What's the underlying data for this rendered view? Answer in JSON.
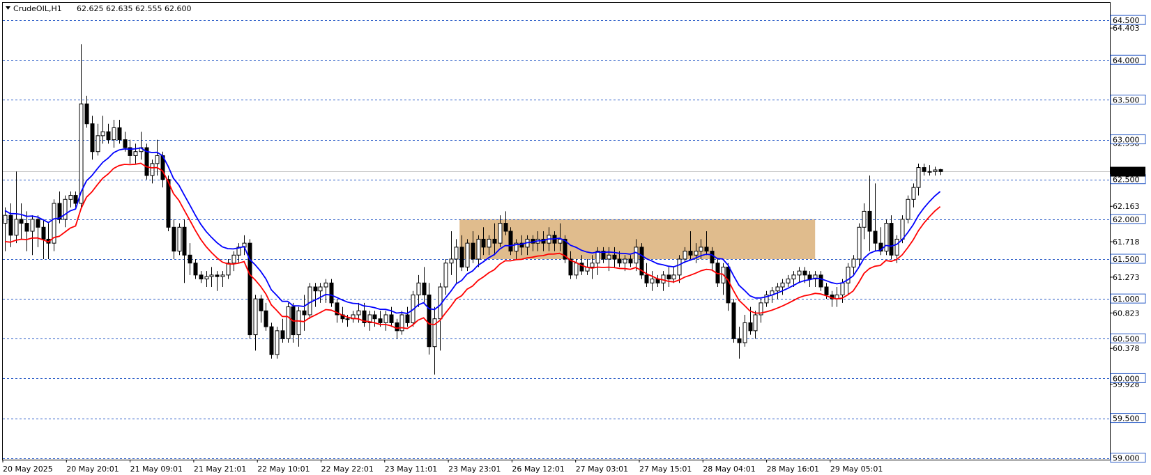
{
  "header": {
    "symbol_timeframe": "CrudeOIL,H1",
    "ohlc": "62.625 62.635 62.555 62.600",
    "menu_icon": "triangle-down-icon"
  },
  "price_axis": {
    "tick_labels": [
      "64.403",
      "62.958",
      "62.163",
      "61.718",
      "61.273",
      "60.823",
      "60.378",
      "59.928",
      "59.483"
    ],
    "tick_values": [
      64.403,
      62.958,
      62.163,
      61.718,
      61.273,
      60.823,
      60.378,
      59.928,
      59.483
    ]
  },
  "level_lines": {
    "values": [
      64.5,
      64.0,
      63.5,
      63.0,
      62.5,
      62.0,
      61.5,
      61.0,
      60.5,
      60.0,
      59.5,
      59.0
    ],
    "labels": [
      "64.500",
      "64.000",
      "63.500",
      "63.000",
      "62.500",
      "62.000",
      "61.500",
      "61.000",
      "60.500",
      "60.000",
      "59.500",
      "59.000"
    ],
    "color": "#2a5cc7"
  },
  "current_price": {
    "value": 62.6,
    "label": "62.600",
    "label_bg": "#000000",
    "label_fg": "#ffffff",
    "line_color": "#c0c0c0"
  },
  "time_axis": {
    "labels": [
      "20 May 2025",
      "20 May 20:01",
      "21 May 09:01",
      "21 May 21:01",
      "22 May 10:01",
      "22 May 22:01",
      "23 May 11:01",
      "23 May 23:01",
      "26 May 12:01",
      "27 May 03:01",
      "27 May 15:01",
      "28 May 04:01",
      "28 May 16:01",
      "29 May 05:01"
    ]
  },
  "zone": {
    "label": "",
    "price_low": 61.5,
    "price_high": 62.0,
    "bar_start": 84,
    "bar_end": 149,
    "color": "#deb887"
  },
  "chart_data": {
    "type": "candlestick",
    "symbol": "CrudeOIL",
    "timeframe": "H1",
    "ylim": [
      58.98,
      64.72
    ],
    "candles": [
      {
        "o": 61.95,
        "h": 62.15,
        "l": 61.6,
        "c": 62.05
      },
      {
        "o": 62.05,
        "h": 62.2,
        "l": 61.65,
        "c": 61.8
      },
      {
        "o": 61.8,
        "h": 62.6,
        "l": 61.7,
        "c": 62.0
      },
      {
        "o": 62.0,
        "h": 62.2,
        "l": 61.75,
        "c": 61.95
      },
      {
        "o": 61.95,
        "h": 62.1,
        "l": 61.6,
        "c": 61.85
      },
      {
        "o": 61.85,
        "h": 62.05,
        "l": 61.55,
        "c": 62.0
      },
      {
        "o": 62.0,
        "h": 62.05,
        "l": 61.65,
        "c": 61.9
      },
      {
        "o": 61.9,
        "h": 62.0,
        "l": 61.5,
        "c": 61.75
      },
      {
        "o": 61.75,
        "h": 61.95,
        "l": 61.5,
        "c": 61.7
      },
      {
        "o": 61.7,
        "h": 62.25,
        "l": 61.6,
        "c": 62.2
      },
      {
        "o": 62.2,
        "h": 62.35,
        "l": 61.95,
        "c": 62.0
      },
      {
        "o": 62.0,
        "h": 62.3,
        "l": 61.9,
        "c": 62.25
      },
      {
        "o": 62.25,
        "h": 62.35,
        "l": 62.15,
        "c": 62.3
      },
      {
        "o": 62.3,
        "h": 62.35,
        "l": 62.15,
        "c": 62.2
      },
      {
        "o": 62.2,
        "h": 64.2,
        "l": 62.15,
        "c": 63.45
      },
      {
        "o": 63.45,
        "h": 63.55,
        "l": 63.15,
        "c": 63.2
      },
      {
        "o": 63.2,
        "h": 63.3,
        "l": 62.75,
        "c": 62.85
      },
      {
        "o": 62.85,
        "h": 63.2,
        "l": 62.8,
        "c": 63.05
      },
      {
        "o": 63.05,
        "h": 63.3,
        "l": 62.95,
        "c": 63.1
      },
      {
        "o": 63.1,
        "h": 63.2,
        "l": 62.95,
        "c": 63.0
      },
      {
        "o": 63.0,
        "h": 63.25,
        "l": 62.9,
        "c": 63.15
      },
      {
        "o": 63.15,
        "h": 63.25,
        "l": 62.95,
        "c": 63.0
      },
      {
        "o": 63.0,
        "h": 63.1,
        "l": 62.85,
        "c": 62.9
      },
      {
        "o": 62.9,
        "h": 63.0,
        "l": 62.7,
        "c": 62.8
      },
      {
        "o": 62.8,
        "h": 62.95,
        "l": 62.7,
        "c": 62.85
      },
      {
        "o": 62.85,
        "h": 63.1,
        "l": 62.75,
        "c": 62.9
      },
      {
        "o": 62.9,
        "h": 62.95,
        "l": 62.5,
        "c": 62.55
      },
      {
        "o": 62.55,
        "h": 62.75,
        "l": 62.45,
        "c": 62.7
      },
      {
        "o": 62.7,
        "h": 63.0,
        "l": 62.55,
        "c": 62.8
      },
      {
        "o": 62.8,
        "h": 62.85,
        "l": 62.4,
        "c": 62.5
      },
      {
        "o": 62.5,
        "h": 62.55,
        "l": 61.85,
        "c": 61.9
      },
      {
        "o": 61.9,
        "h": 62.0,
        "l": 61.5,
        "c": 61.6
      },
      {
        "o": 61.6,
        "h": 61.95,
        "l": 61.55,
        "c": 61.9
      },
      {
        "o": 61.9,
        "h": 62.0,
        "l": 61.2,
        "c": 61.55
      },
      {
        "o": 61.55,
        "h": 61.7,
        "l": 61.3,
        "c": 61.45
      },
      {
        "o": 61.45,
        "h": 61.5,
        "l": 61.25,
        "c": 61.3
      },
      {
        "o": 61.3,
        "h": 61.35,
        "l": 61.2,
        "c": 61.25
      },
      {
        "o": 61.25,
        "h": 61.35,
        "l": 61.15,
        "c": 61.28
      },
      {
        "o": 61.28,
        "h": 61.4,
        "l": 61.15,
        "c": 61.3
      },
      {
        "o": 61.3,
        "h": 61.35,
        "l": 61.1,
        "c": 61.28
      },
      {
        "o": 61.28,
        "h": 61.35,
        "l": 61.15,
        "c": 61.3
      },
      {
        "o": 61.3,
        "h": 61.5,
        "l": 61.25,
        "c": 61.45
      },
      {
        "o": 61.45,
        "h": 61.6,
        "l": 61.35,
        "c": 61.55
      },
      {
        "o": 61.55,
        "h": 61.7,
        "l": 61.45,
        "c": 61.65
      },
      {
        "o": 61.65,
        "h": 61.8,
        "l": 61.55,
        "c": 61.7
      },
      {
        "o": 61.7,
        "h": 61.75,
        "l": 60.5,
        "c": 60.55
      },
      {
        "o": 60.55,
        "h": 61.05,
        "l": 60.35,
        "c": 61.0
      },
      {
        "o": 61.0,
        "h": 61.05,
        "l": 60.7,
        "c": 60.85
      },
      {
        "o": 60.85,
        "h": 60.95,
        "l": 60.6,
        "c": 60.65
      },
      {
        "o": 60.65,
        "h": 60.7,
        "l": 60.25,
        "c": 60.3
      },
      {
        "o": 60.3,
        "h": 60.65,
        "l": 60.25,
        "c": 60.6
      },
      {
        "o": 60.6,
        "h": 60.75,
        "l": 60.45,
        "c": 60.5
      },
      {
        "o": 60.5,
        "h": 60.95,
        "l": 60.45,
        "c": 60.9
      },
      {
        "o": 60.9,
        "h": 60.95,
        "l": 60.45,
        "c": 60.55
      },
      {
        "o": 60.55,
        "h": 60.9,
        "l": 60.4,
        "c": 60.85
      },
      {
        "o": 60.85,
        "h": 61.05,
        "l": 60.6,
        "c": 60.8
      },
      {
        "o": 60.8,
        "h": 61.2,
        "l": 60.75,
        "c": 61.15
      },
      {
        "o": 61.15,
        "h": 61.2,
        "l": 60.9,
        "c": 61.1
      },
      {
        "o": 61.1,
        "h": 61.2,
        "l": 60.95,
        "c": 61.15
      },
      {
        "o": 61.15,
        "h": 61.25,
        "l": 60.95,
        "c": 61.2
      },
      {
        "o": 61.2,
        "h": 61.25,
        "l": 60.9,
        "c": 60.95
      },
      {
        "o": 60.95,
        "h": 61.0,
        "l": 60.7,
        "c": 60.8
      },
      {
        "o": 60.8,
        "h": 60.9,
        "l": 60.7,
        "c": 60.75
      },
      {
        "o": 60.75,
        "h": 60.8,
        "l": 60.65,
        "c": 60.75
      },
      {
        "o": 60.75,
        "h": 60.85,
        "l": 60.7,
        "c": 60.8
      },
      {
        "o": 60.8,
        "h": 60.95,
        "l": 60.7,
        "c": 60.85
      },
      {
        "o": 60.85,
        "h": 60.95,
        "l": 60.65,
        "c": 60.7
      },
      {
        "o": 60.7,
        "h": 60.85,
        "l": 60.6,
        "c": 60.8
      },
      {
        "o": 60.8,
        "h": 60.85,
        "l": 60.65,
        "c": 60.75
      },
      {
        "o": 60.75,
        "h": 60.85,
        "l": 60.65,
        "c": 60.7
      },
      {
        "o": 60.7,
        "h": 60.85,
        "l": 60.6,
        "c": 60.8
      },
      {
        "o": 60.8,
        "h": 60.9,
        "l": 60.65,
        "c": 60.7
      },
      {
        "o": 60.7,
        "h": 60.75,
        "l": 60.5,
        "c": 60.6
      },
      {
        "o": 60.6,
        "h": 60.85,
        "l": 60.55,
        "c": 60.8
      },
      {
        "o": 60.8,
        "h": 60.9,
        "l": 60.65,
        "c": 60.7
      },
      {
        "o": 60.7,
        "h": 61.1,
        "l": 60.65,
        "c": 61.05
      },
      {
        "o": 61.05,
        "h": 61.3,
        "l": 60.9,
        "c": 61.2
      },
      {
        "o": 61.2,
        "h": 61.4,
        "l": 60.95,
        "c": 61.05
      },
      {
        "o": 61.05,
        "h": 61.2,
        "l": 60.3,
        "c": 60.4
      },
      {
        "o": 60.4,
        "h": 60.9,
        "l": 60.05,
        "c": 60.75
      },
      {
        "o": 60.75,
        "h": 61.2,
        "l": 60.35,
        "c": 61.15
      },
      {
        "o": 61.15,
        "h": 61.5,
        "l": 61.05,
        "c": 61.45
      },
      {
        "o": 61.45,
        "h": 61.85,
        "l": 61.3,
        "c": 61.5
      },
      {
        "o": 61.5,
        "h": 61.75,
        "l": 61.2,
        "c": 61.65
      },
      {
        "o": 61.65,
        "h": 61.8,
        "l": 61.35,
        "c": 61.4
      },
      {
        "o": 61.4,
        "h": 61.75,
        "l": 61.35,
        "c": 61.7
      },
      {
        "o": 61.7,
        "h": 61.85,
        "l": 61.45,
        "c": 61.5
      },
      {
        "o": 61.5,
        "h": 61.8,
        "l": 61.4,
        "c": 61.75
      },
      {
        "o": 61.75,
        "h": 61.9,
        "l": 61.55,
        "c": 61.65
      },
      {
        "o": 61.65,
        "h": 61.8,
        "l": 61.55,
        "c": 61.75
      },
      {
        "o": 61.75,
        "h": 61.95,
        "l": 61.55,
        "c": 61.7
      },
      {
        "o": 61.7,
        "h": 62.05,
        "l": 61.65,
        "c": 61.95
      },
      {
        "o": 61.95,
        "h": 62.1,
        "l": 61.8,
        "c": 61.85
      },
      {
        "o": 61.85,
        "h": 61.9,
        "l": 61.55,
        "c": 61.6
      },
      {
        "o": 61.6,
        "h": 61.75,
        "l": 61.5,
        "c": 61.7
      },
      {
        "o": 61.7,
        "h": 61.8,
        "l": 61.55,
        "c": 61.65
      },
      {
        "o": 61.65,
        "h": 61.8,
        "l": 61.55,
        "c": 61.75
      },
      {
        "o": 61.75,
        "h": 61.8,
        "l": 61.6,
        "c": 61.7
      },
      {
        "o": 61.7,
        "h": 61.85,
        "l": 61.6,
        "c": 61.75
      },
      {
        "o": 61.75,
        "h": 61.85,
        "l": 61.6,
        "c": 61.7
      },
      {
        "o": 61.7,
        "h": 61.9,
        "l": 61.6,
        "c": 61.8
      },
      {
        "o": 61.8,
        "h": 61.85,
        "l": 61.6,
        "c": 61.7
      },
      {
        "o": 61.7,
        "h": 61.95,
        "l": 61.6,
        "c": 61.75
      },
      {
        "o": 61.75,
        "h": 61.8,
        "l": 61.45,
        "c": 61.5
      },
      {
        "o": 61.5,
        "h": 61.6,
        "l": 61.25,
        "c": 61.3
      },
      {
        "o": 61.3,
        "h": 61.5,
        "l": 61.25,
        "c": 61.45
      },
      {
        "o": 61.45,
        "h": 61.55,
        "l": 61.3,
        "c": 61.35
      },
      {
        "o": 61.35,
        "h": 61.5,
        "l": 61.3,
        "c": 61.4
      },
      {
        "o": 61.4,
        "h": 61.55,
        "l": 61.25,
        "c": 61.45
      },
      {
        "o": 61.45,
        "h": 61.65,
        "l": 61.3,
        "c": 61.6
      },
      {
        "o": 61.6,
        "h": 61.65,
        "l": 61.45,
        "c": 61.5
      },
      {
        "o": 61.5,
        "h": 61.65,
        "l": 61.35,
        "c": 61.55
      },
      {
        "o": 61.55,
        "h": 61.65,
        "l": 61.4,
        "c": 61.5
      },
      {
        "o": 61.5,
        "h": 61.6,
        "l": 61.4,
        "c": 61.45
      },
      {
        "o": 61.45,
        "h": 61.55,
        "l": 61.35,
        "c": 61.5
      },
      {
        "o": 61.5,
        "h": 61.55,
        "l": 61.4,
        "c": 61.45
      },
      {
        "o": 61.45,
        "h": 61.75,
        "l": 61.35,
        "c": 61.65
      },
      {
        "o": 61.65,
        "h": 61.7,
        "l": 61.25,
        "c": 61.3
      },
      {
        "o": 61.3,
        "h": 61.45,
        "l": 61.15,
        "c": 61.2
      },
      {
        "o": 61.2,
        "h": 61.35,
        "l": 61.1,
        "c": 61.25
      },
      {
        "o": 61.25,
        "h": 61.3,
        "l": 61.15,
        "c": 61.2
      },
      {
        "o": 61.2,
        "h": 61.35,
        "l": 61.1,
        "c": 61.3
      },
      {
        "o": 61.3,
        "h": 61.4,
        "l": 61.15,
        "c": 61.25
      },
      {
        "o": 61.25,
        "h": 61.4,
        "l": 61.2,
        "c": 61.3
      },
      {
        "o": 61.3,
        "h": 61.55,
        "l": 61.2,
        "c": 61.5
      },
      {
        "o": 61.5,
        "h": 61.65,
        "l": 61.45,
        "c": 61.6
      },
      {
        "o": 61.6,
        "h": 61.85,
        "l": 61.5,
        "c": 61.55
      },
      {
        "o": 61.55,
        "h": 61.7,
        "l": 61.45,
        "c": 61.6
      },
      {
        "o": 61.6,
        "h": 61.75,
        "l": 61.5,
        "c": 61.65
      },
      {
        "o": 61.65,
        "h": 61.85,
        "l": 61.55,
        "c": 61.6
      },
      {
        "o": 61.6,
        "h": 61.65,
        "l": 61.35,
        "c": 61.45
      },
      {
        "o": 61.45,
        "h": 61.5,
        "l": 61.15,
        "c": 61.2
      },
      {
        "o": 61.2,
        "h": 61.45,
        "l": 61.05,
        "c": 61.4
      },
      {
        "o": 61.4,
        "h": 61.45,
        "l": 60.85,
        "c": 60.95
      },
      {
        "o": 60.95,
        "h": 61.0,
        "l": 60.45,
        "c": 60.5
      },
      {
        "o": 60.5,
        "h": 60.65,
        "l": 60.25,
        "c": 60.45
      },
      {
        "o": 60.45,
        "h": 60.8,
        "l": 60.4,
        "c": 60.7
      },
      {
        "o": 60.7,
        "h": 60.9,
        "l": 60.55,
        "c": 60.6
      },
      {
        "o": 60.6,
        "h": 60.85,
        "l": 60.5,
        "c": 60.8
      },
      {
        "o": 60.8,
        "h": 61.0,
        "l": 60.7,
        "c": 60.95
      },
      {
        "o": 60.95,
        "h": 61.1,
        "l": 60.9,
        "c": 61.05
      },
      {
        "o": 61.05,
        "h": 61.15,
        "l": 60.95,
        "c": 61.1
      },
      {
        "o": 61.1,
        "h": 61.2,
        "l": 61.0,
        "c": 61.15
      },
      {
        "o": 61.15,
        "h": 61.25,
        "l": 61.05,
        "c": 61.2
      },
      {
        "o": 61.2,
        "h": 61.3,
        "l": 61.15,
        "c": 61.25
      },
      {
        "o": 61.25,
        "h": 61.35,
        "l": 61.15,
        "c": 61.3
      },
      {
        "o": 61.3,
        "h": 61.4,
        "l": 61.2,
        "c": 61.35
      },
      {
        "o": 61.35,
        "h": 61.4,
        "l": 61.2,
        "c": 61.3
      },
      {
        "o": 61.3,
        "h": 61.35,
        "l": 61.15,
        "c": 61.25
      },
      {
        "o": 61.25,
        "h": 61.35,
        "l": 61.15,
        "c": 61.3
      },
      {
        "o": 61.3,
        "h": 61.35,
        "l": 61.1,
        "c": 61.15
      },
      {
        "o": 61.15,
        "h": 61.2,
        "l": 61.0,
        "c": 61.05
      },
      {
        "o": 61.05,
        "h": 61.1,
        "l": 60.9,
        "c": 61.0
      },
      {
        "o": 61.0,
        "h": 61.15,
        "l": 60.9,
        "c": 61.05
      },
      {
        "o": 61.05,
        "h": 61.25,
        "l": 60.95,
        "c": 61.2
      },
      {
        "o": 61.2,
        "h": 61.45,
        "l": 61.05,
        "c": 61.4
      },
      {
        "o": 61.4,
        "h": 61.55,
        "l": 61.3,
        "c": 61.5
      },
      {
        "o": 61.5,
        "h": 61.95,
        "l": 61.4,
        "c": 61.9
      },
      {
        "o": 61.9,
        "h": 62.2,
        "l": 61.75,
        "c": 62.1
      },
      {
        "o": 62.1,
        "h": 62.55,
        "l": 61.6,
        "c": 61.85
      },
      {
        "o": 61.85,
        "h": 62.45,
        "l": 61.6,
        "c": 61.7
      },
      {
        "o": 61.7,
        "h": 61.9,
        "l": 61.55,
        "c": 61.6
      },
      {
        "o": 61.6,
        "h": 62.0,
        "l": 61.55,
        "c": 61.95
      },
      {
        "o": 61.95,
        "h": 62.05,
        "l": 61.5,
        "c": 61.55
      },
      {
        "o": 61.55,
        "h": 61.8,
        "l": 61.45,
        "c": 61.75
      },
      {
        "o": 61.75,
        "h": 62.05,
        "l": 61.7,
        "c": 62.0
      },
      {
        "o": 62.0,
        "h": 62.3,
        "l": 61.95,
        "c": 62.25
      },
      {
        "o": 62.25,
        "h": 62.45,
        "l": 62.15,
        "c": 62.4
      },
      {
        "o": 62.4,
        "h": 62.7,
        "l": 62.3,
        "c": 62.65
      },
      {
        "o": 62.65,
        "h": 62.7,
        "l": 62.55,
        "c": 62.6
      },
      {
        "o": 62.6,
        "h": 62.68,
        "l": 62.55,
        "c": 62.6
      },
      {
        "o": 62.6,
        "h": 62.66,
        "l": 62.55,
        "c": 62.62
      },
      {
        "o": 62.625,
        "h": 62.635,
        "l": 62.555,
        "c": 62.6
      }
    ],
    "moving_averages": [
      {
        "name": "",
        "color": "#0000ff"
      },
      {
        "name": "",
        "color": "#ff0000"
      }
    ]
  }
}
